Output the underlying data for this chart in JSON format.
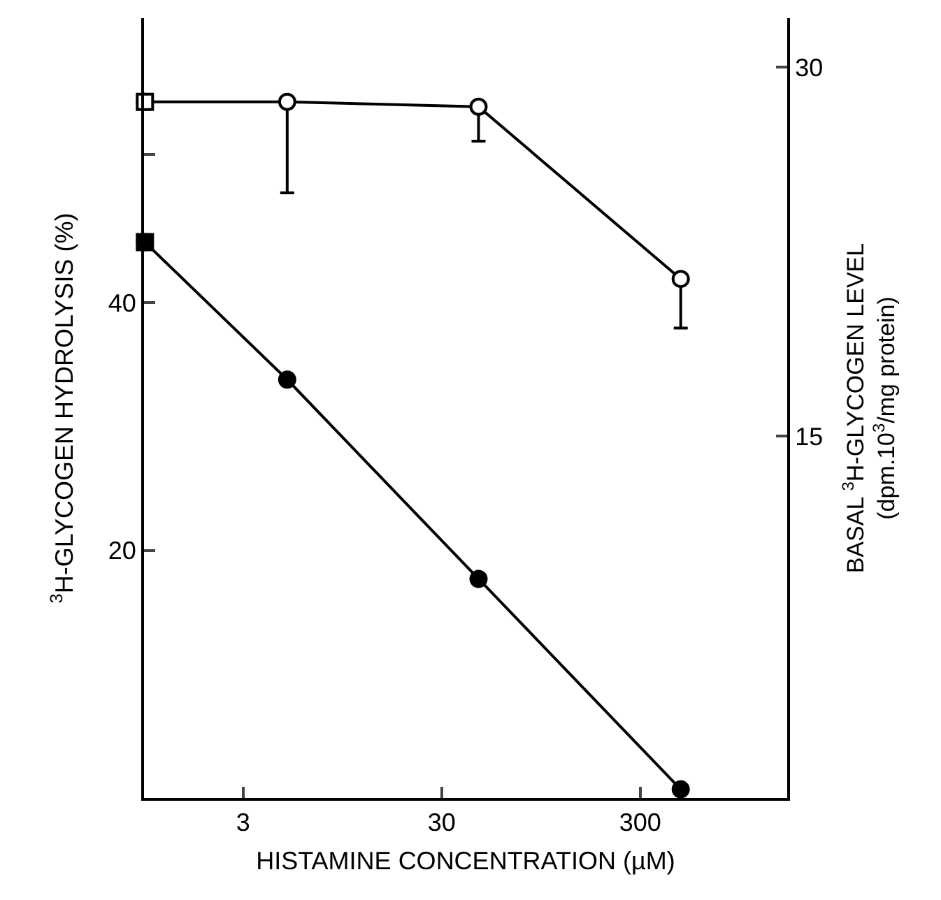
{
  "chart_data": {
    "type": "line",
    "xlabel": "HISTAMINE CONCENTRATION (µM)",
    "ylabel": "$^{3}$H-GLYCOGEN HYDROLYSIS (%)",
    "y2label": "BASAL $^{3}$H-GLYCOGEN LEVEL\n(dpm.10$^{3}$/mg protein)",
    "log": "x",
    "xlim": [
      0.95,
      1650
    ],
    "xticks": [
      3,
      30,
      300
    ],
    "ylim": [
      0,
      63
    ],
    "yticks": [
      20,
      40,
      {
        "value": 52,
        "label": null
      }
    ],
    "y2lim": [
      0.3,
      32
    ],
    "y2ticks": [
      15,
      30
    ],
    "series": [
      {
        "color": "#000000",
        "marker": "circle",
        "x": [
          0.96,
          5,
          46,
          480
        ],
        "values": [
          44.9,
          33.8,
          17.7,
          0.7
        ]
      },
      {
        "type": "scatter",
        "color": "#000000",
        "marker": "square",
        "x": [
          0.96
        ],
        "values": [
          44.9
        ]
      },
      {
        "axis": "y2",
        "color": "#000000",
        "marker": "circle",
        "x": [
          0.96,
          5,
          46,
          480
        ],
        "values": [
          28.6,
          28.6,
          28.4,
          21.4
        ],
        "errors": [
          null,
          [
            24.9,
            28.6
          ],
          [
            27.0,
            28.4
          ],
          [
            19.4,
            21.4
          ]
        ]
      },
      {
        "type": "scatter",
        "axis": "y2",
        "color": "#000000",
        "marker": "square",
        "x": [
          0.96
        ],
        "values": [
          28.6
        ]
      }
    ]
  }
}
